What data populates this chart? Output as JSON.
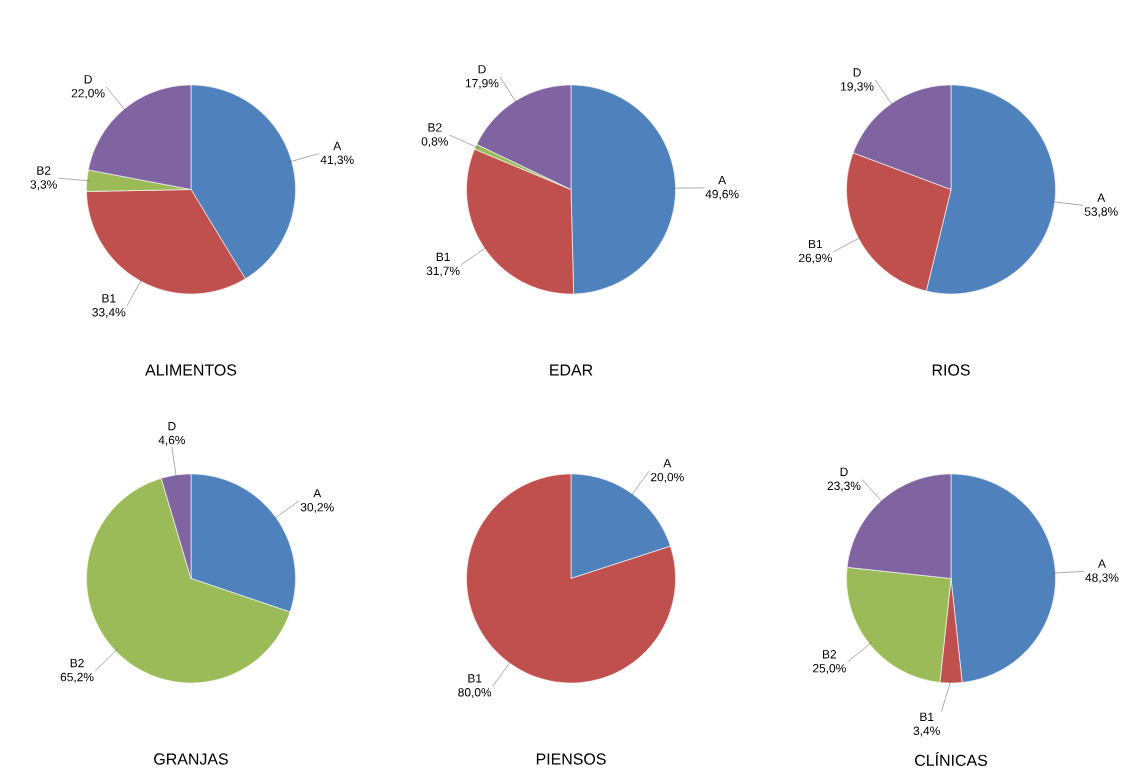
{
  "chart_data": [
    {
      "type": "pie",
      "title": "ALIMENTOS",
      "categories": [
        "A",
        "B1",
        "B2",
        "D"
      ],
      "values": [
        41.3,
        33.4,
        3.3,
        22.0
      ],
      "colors": [
        "#4f81bd",
        "#c0504d",
        "#9bbb59",
        "#8064a2"
      ],
      "value_labels": [
        "41,3%",
        "33,4%",
        "3,3%",
        "22,0%"
      ]
    },
    {
      "type": "pie",
      "title": "EDAR",
      "categories": [
        "A",
        "B1",
        "B2",
        "D"
      ],
      "values": [
        49.6,
        31.7,
        0.8,
        17.9
      ],
      "colors": [
        "#4f81bd",
        "#c0504d",
        "#9bbb59",
        "#8064a2"
      ],
      "value_labels": [
        "49,6%",
        "31,7%",
        "0,8%",
        "17,9%"
      ]
    },
    {
      "type": "pie",
      "title": "RIOS",
      "categories": [
        "A",
        "B1",
        "D"
      ],
      "values": [
        53.8,
        26.9,
        19.3
      ],
      "colors": [
        "#4f81bd",
        "#c0504d",
        "#8064a2"
      ],
      "value_labels": [
        "53,8%",
        "26,9%",
        "19,3%"
      ]
    },
    {
      "type": "pie",
      "title": "GRANJAS",
      "categories": [
        "A",
        "B2",
        "D"
      ],
      "values": [
        30.2,
        65.2,
        4.6
      ],
      "colors": [
        "#4f81bd",
        "#9bbb59",
        "#8064a2"
      ],
      "value_labels": [
        "30,2%",
        "65,2%",
        "4,6%"
      ]
    },
    {
      "type": "pie",
      "title": "PIENSOS",
      "categories": [
        "A",
        "B1"
      ],
      "values": [
        20.0,
        80.0
      ],
      "colors": [
        "#4f81bd",
        "#c0504d"
      ],
      "value_labels": [
        "20,0%",
        "80,0%"
      ]
    },
    {
      "type": "pie",
      "title": "CLÍNICAS",
      "categories": [
        "A",
        "B1",
        "B2",
        "D"
      ],
      "values": [
        48.3,
        3.4,
        25.0,
        23.3
      ],
      "colors": [
        "#4f81bd",
        "#c0504d",
        "#9bbb59",
        "#8064a2"
      ],
      "value_labels": [
        "48,3%",
        "3,4%",
        "25,0%",
        "23,3%"
      ]
    }
  ]
}
